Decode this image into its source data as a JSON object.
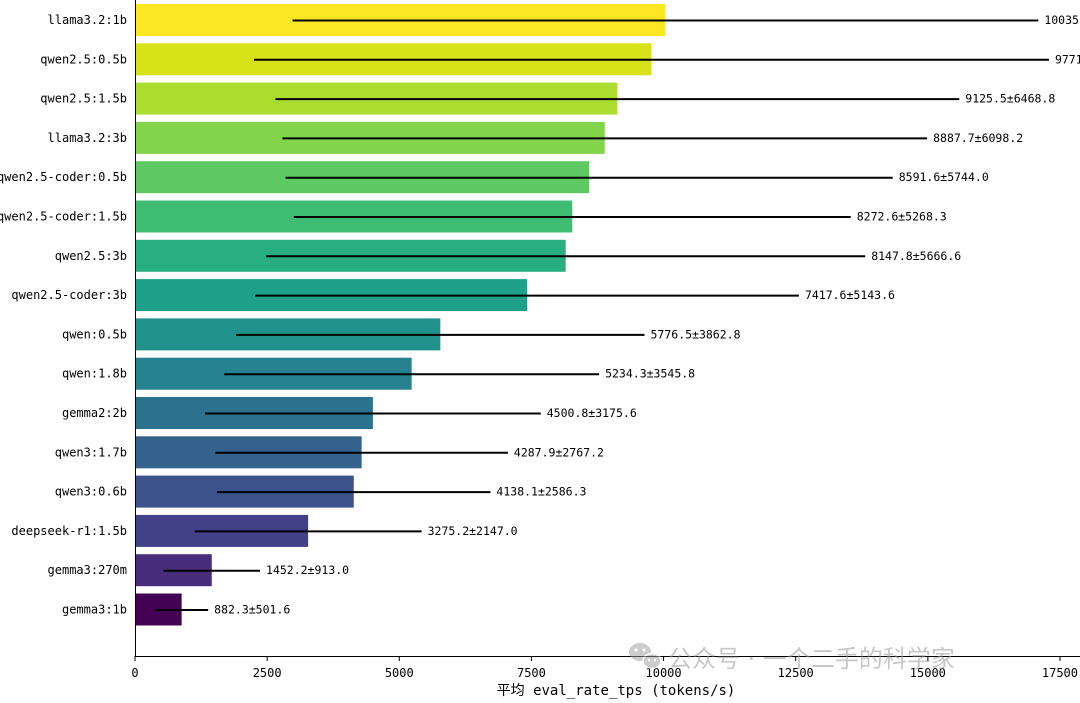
{
  "chart_data": {
    "type": "bar",
    "orientation": "horizontal",
    "xlabel": "平均 eval_rate_tps (tokens/s)",
    "xlim": [
      0,
      17500
    ],
    "xticks": [
      0,
      2500,
      5000,
      7500,
      10000,
      12500,
      15000,
      17500
    ],
    "grid": false,
    "colormap": "viridis",
    "categories": [
      "llama3.2:1b",
      "qwen2.5:0.5b",
      "qwen2.5:1.5b",
      "llama3.2:3b",
      "qwen2.5-coder:0.5b",
      "qwen2.5-coder:1.5b",
      "qwen2.5:3b",
      "qwen2.5-coder:3b",
      "qwen:0.5b",
      "qwen:1.8b",
      "gemma2:2b",
      "qwen3:1.7b",
      "qwen3:0.6b",
      "deepseek-r1:1.5b",
      "gemma3:270m",
      "gemma3:1b"
    ],
    "values": [
      10035,
      9771,
      9125.5,
      8887.7,
      8591.6,
      8272.6,
      8147.8,
      7417.6,
      5776.5,
      5234.3,
      4500.8,
      4287.9,
      4138.1,
      3275.2,
      1452.2,
      882.3
    ],
    "errors": [
      7055,
      7520,
      6468.8,
      6098.2,
      5744.0,
      5268.3,
      5666.6,
      5143.6,
      3862.8,
      3545.8,
      3175.6,
      2767.2,
      2586.3,
      2147.0,
      913.0,
      501.6
    ],
    "value_labels": [
      "10035.",
      "9771",
      "9125.5±6468.8",
      "8887.7±6098.2",
      "8591.6±5744.0",
      "8272.6±5268.3",
      "8147.8±5666.6",
      "7417.6±5143.6",
      "5776.5±3862.8",
      "5234.3±3545.8",
      "4500.8±3175.6",
      "4287.9±2767.2",
      "4138.1±2586.3",
      "3275.2±2147.0",
      "1452.2±913.0",
      "882.3±501.6"
    ],
    "colors": [
      "#fde725",
      "#d8e219",
      "#addc30",
      "#84d44b",
      "#5ec962",
      "#3fbc73",
      "#28ae80",
      "#1fa088",
      "#21918c",
      "#26828e",
      "#2c728e",
      "#33638d",
      "#3b528b",
      "#424086",
      "#472d7b",
      "#440154"
    ]
  },
  "watermark": {
    "text": "公众号 · 一个二手的科学家",
    "icon": "wechat-icon",
    "color": "#9a9a9a"
  }
}
